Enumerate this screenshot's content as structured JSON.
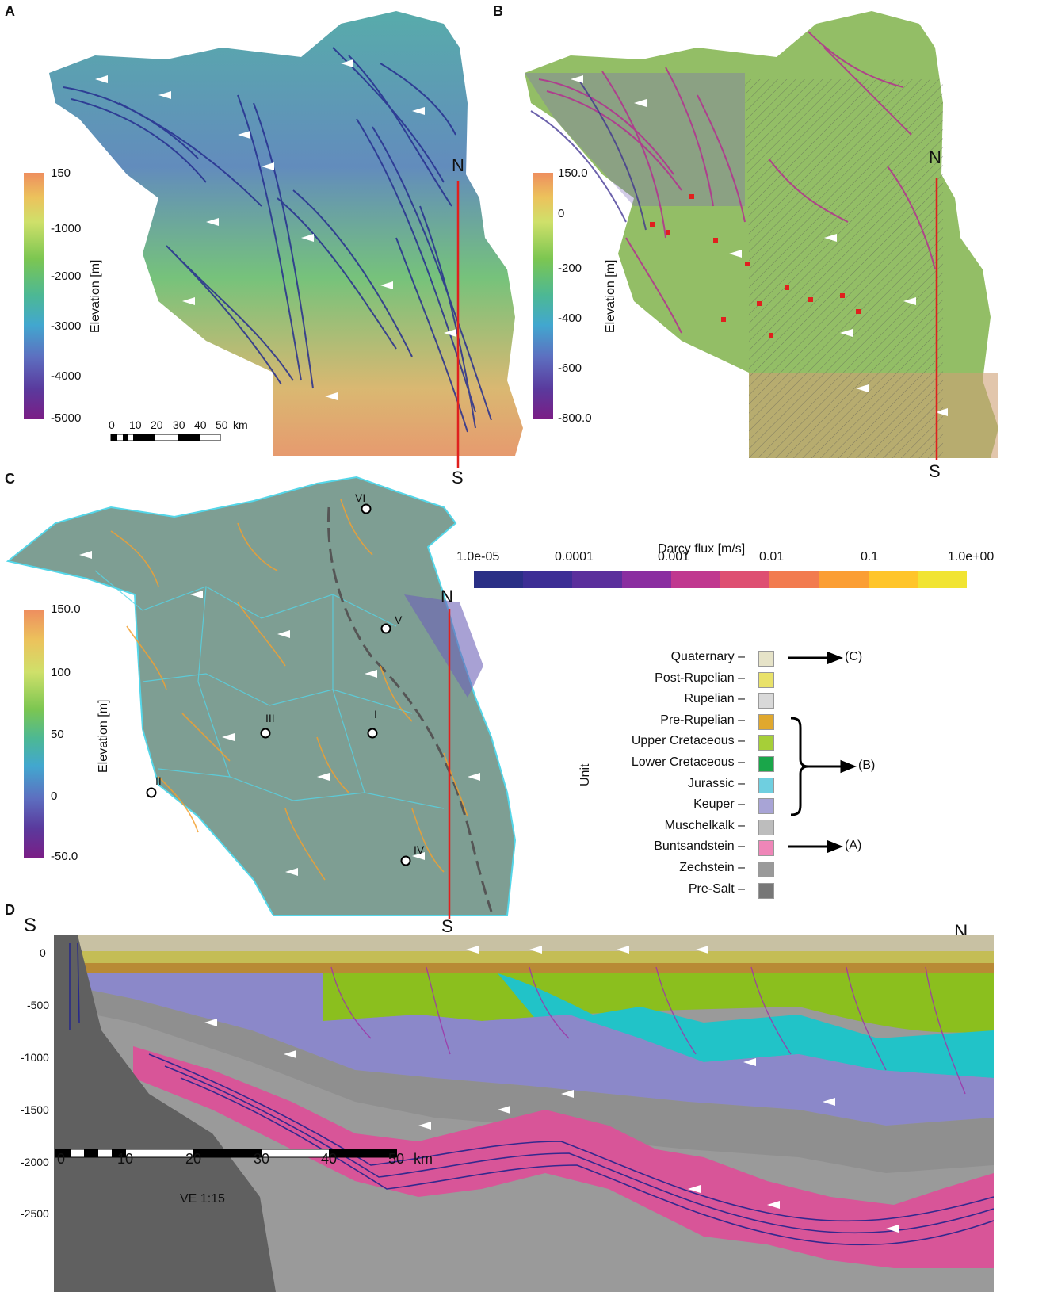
{
  "panels": {
    "a": {
      "label": "A",
      "cb_title": "Elevation [m]",
      "cb_ticks": [
        "150",
        "-1000",
        "-2000",
        "-3000",
        "-4000",
        "-5000"
      ],
      "scale_ticks": [
        "0",
        "10",
        "20",
        "30",
        "40",
        "50"
      ],
      "scale_unit": "km",
      "north": "N",
      "south": "S"
    },
    "b": {
      "label": "B",
      "cb_title": "Elevation [m]",
      "cb_ticks": [
        "150.0",
        "0",
        "-200",
        "-400",
        "-600",
        "-800.0"
      ],
      "north": "N",
      "south": "S"
    },
    "c": {
      "label": "C",
      "cb_title": "Elevation [m]",
      "cb_ticks": [
        "150.0",
        "100",
        "50",
        "0",
        "-50.0"
      ],
      "north": "N",
      "south": "S",
      "sites": [
        "VI",
        "V",
        "III",
        "I",
        "II",
        "IV"
      ]
    },
    "d": {
      "label": "D",
      "south": "S",
      "north": "N",
      "y_ticks": [
        "0",
        "-500",
        "-1000",
        "-1500",
        "-2000",
        "-2500"
      ],
      "scale_ticks": [
        "0",
        "10",
        "20",
        "30",
        "40",
        "50"
      ],
      "scale_unit": "km",
      "ve": "VE 1:15"
    }
  },
  "darcy": {
    "title": "Darcy flux [m/s]",
    "ticks": [
      "1.0e-05",
      "0.0001",
      "0.001",
      "0.01",
      "0.1",
      "1.0e+00"
    ],
    "colors": [
      "#2a2f86",
      "#3d2e95",
      "#5b2f9c",
      "#8a2ea0",
      "#c0388f",
      "#de4f72",
      "#f27b4f",
      "#fb9e34",
      "#ffc52a",
      "#f1e432"
    ]
  },
  "units": {
    "title": "Unit",
    "items": [
      {
        "name": "Quaternary",
        "color": "#e6e3c8"
      },
      {
        "name": "Post-Rupelian",
        "color": "#e9e26a"
      },
      {
        "name": "Rupelian",
        "color": "#d9d9d9"
      },
      {
        "name": "Pre-Rupelian",
        "color": "#e0a82e"
      },
      {
        "name": "Upper Cretaceous",
        "color": "#a6cf38"
      },
      {
        "name": "Lower Cretaceous",
        "color": "#1aa64a"
      },
      {
        "name": "Jurassic",
        "color": "#6fcfe0"
      },
      {
        "name": "Keuper",
        "color": "#a8a4d6"
      },
      {
        "name": "Muschelkalk",
        "color": "#bdbdbd"
      },
      {
        "name": "Buntsandstein",
        "color": "#ef86b8"
      },
      {
        "name": "Zechstein",
        "color": "#9a9a9a"
      },
      {
        "name": "Pre-Salt",
        "color": "#777777"
      }
    ],
    "arrows": [
      "(C)",
      "(B)",
      "(A)"
    ]
  }
}
